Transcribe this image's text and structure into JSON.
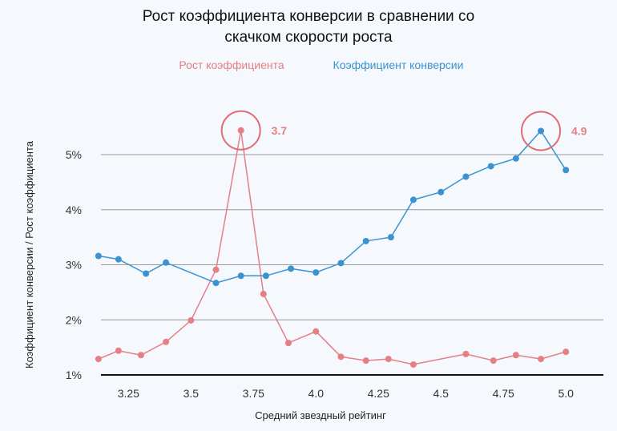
{
  "chart_data": {
    "type": "line",
    "title": [
      "Рост коэффициента конверсии в сравнении со",
      "скачком скорости роста"
    ],
    "xlabel": "Средний звездный рейтинг",
    "ylabel": "Коэффициент конверсии / Рост коэффициента",
    "xlim": [
      3.14,
      5.15
    ],
    "ylim": [
      1,
      5.5
    ],
    "xticks": [
      3.25,
      3.5,
      3.75,
      4.0,
      4.25,
      4.5,
      4.75,
      5.0
    ],
    "xtick_labels": [
      "3.25",
      "3.5",
      "3.75",
      "4.0",
      "4.25",
      "4.5",
      "4.75",
      "5.0"
    ],
    "yticks": [
      1,
      2,
      3,
      4,
      5
    ],
    "ytick_labels": [
      "1%",
      "2%",
      "3%",
      "4%",
      "5%"
    ],
    "grid": true,
    "legend_position": "top-center",
    "series": [
      {
        "name": "Рост коэффициента",
        "color": "#e57f86",
        "x": [
          3.13,
          3.21,
          3.3,
          3.4,
          3.5,
          3.6,
          3.7,
          3.79,
          3.89,
          4.0,
          4.1,
          4.2,
          4.29,
          4.39,
          4.6,
          4.71,
          4.8,
          4.9,
          5.0
        ],
        "y": [
          1.29,
          1.44,
          1.36,
          1.6,
          1.99,
          2.91,
          5.44,
          2.47,
          1.58,
          1.79,
          1.33,
          1.26,
          1.29,
          1.19,
          1.38,
          1.26,
          1.36,
          1.29,
          1.42
        ]
      },
      {
        "name": "Коэффициент конверсии",
        "color": "#3a93d0",
        "x": [
          3.13,
          3.21,
          3.32,
          3.4,
          3.6,
          3.7,
          3.8,
          3.9,
          4.0,
          4.1,
          4.2,
          4.3,
          4.39,
          4.5,
          4.6,
          4.7,
          4.8,
          4.9,
          5.0
        ],
        "y": [
          3.16,
          3.1,
          2.84,
          3.04,
          2.67,
          2.8,
          2.8,
          2.93,
          2.86,
          3.03,
          3.43,
          3.5,
          4.18,
          4.32,
          4.6,
          4.79,
          4.93,
          5.43,
          4.72
        ]
      }
    ],
    "annotations": [
      {
        "label": "3.7",
        "series": 0,
        "x": 3.7,
        "y": 5.44
      },
      {
        "label": "4.9",
        "series": 1,
        "x": 4.9,
        "y": 5.43
      }
    ]
  }
}
